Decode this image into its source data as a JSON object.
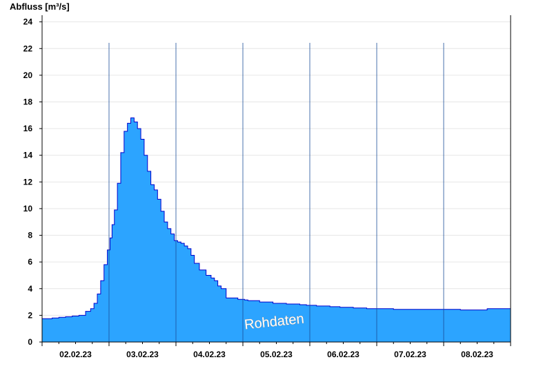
{
  "chart_data": {
    "type": "area",
    "title": "",
    "ylabel": "Abfluss [m³/s]",
    "xlabel": "",
    "ylim": [
      0,
      24.5
    ],
    "yticks": [
      0,
      2,
      4,
      6,
      8,
      10,
      12,
      14,
      16,
      18,
      20,
      22,
      24
    ],
    "xlim_days": [
      0,
      7
    ],
    "x_unit": "days from 02.02.23 00:00",
    "day_boundaries": [
      1,
      2,
      3,
      4,
      5,
      6
    ],
    "xtick_labels": [
      "02.02.23",
      "03.02.23",
      "04.02.23",
      "05.02.23",
      "06.02.23",
      "07.02.23",
      "08.02.23"
    ],
    "grid": true,
    "fill_color": "#2ca4ff",
    "line_color": "#0000cc",
    "watermark": "Rohdaten",
    "series": [
      {
        "name": "Abfluss",
        "x": [
          0,
          0.1,
          0.2,
          0.3,
          0.4,
          0.5,
          0.6,
          0.7,
          0.75,
          0.8,
          0.85,
          0.9,
          0.95,
          1.0,
          1.03,
          1.06,
          1.1,
          1.15,
          1.2,
          1.25,
          1.3,
          1.35,
          1.4,
          1.45,
          1.5,
          1.55,
          1.6,
          1.65,
          1.7,
          1.75,
          1.8,
          1.85,
          1.9,
          1.95,
          2.0,
          2.05,
          2.1,
          2.15,
          2.2,
          2.25,
          2.3,
          2.4,
          2.5,
          2.55,
          2.6,
          2.65,
          2.7,
          2.8,
          2.9,
          2.95,
          3.0,
          3.05,
          3.1,
          3.2,
          3.3,
          3.4,
          3.5,
          3.6,
          3.7,
          3.8,
          3.9,
          4.0,
          4.2,
          4.4,
          4.5,
          4.6,
          4.7,
          4.8,
          4.9,
          5.0,
          5.5,
          6.0,
          6.5,
          6.8,
          7.0
        ],
        "y": [
          1.75,
          1.75,
          1.8,
          1.85,
          1.9,
          1.95,
          2.0,
          2.3,
          2.5,
          2.9,
          3.6,
          4.6,
          5.8,
          6.9,
          7.8,
          8.8,
          9.9,
          11.9,
          14.2,
          15.8,
          16.4,
          16.8,
          16.5,
          16.0,
          15.2,
          14.0,
          12.8,
          11.8,
          11.4,
          10.7,
          9.8,
          9.0,
          8.5,
          8.1,
          7.6,
          7.5,
          7.4,
          7.2,
          7.0,
          6.5,
          5.9,
          5.4,
          5.0,
          4.8,
          4.6,
          4.2,
          4.0,
          3.3,
          3.3,
          3.2,
          3.2,
          3.15,
          3.1,
          3.1,
          3.0,
          3.0,
          2.9,
          2.9,
          2.85,
          2.85,
          2.8,
          2.75,
          2.7,
          2.65,
          2.6,
          2.6,
          2.55,
          2.55,
          2.5,
          2.5,
          2.45,
          2.45,
          2.4,
          2.5,
          2.5
        ]
      }
    ]
  }
}
